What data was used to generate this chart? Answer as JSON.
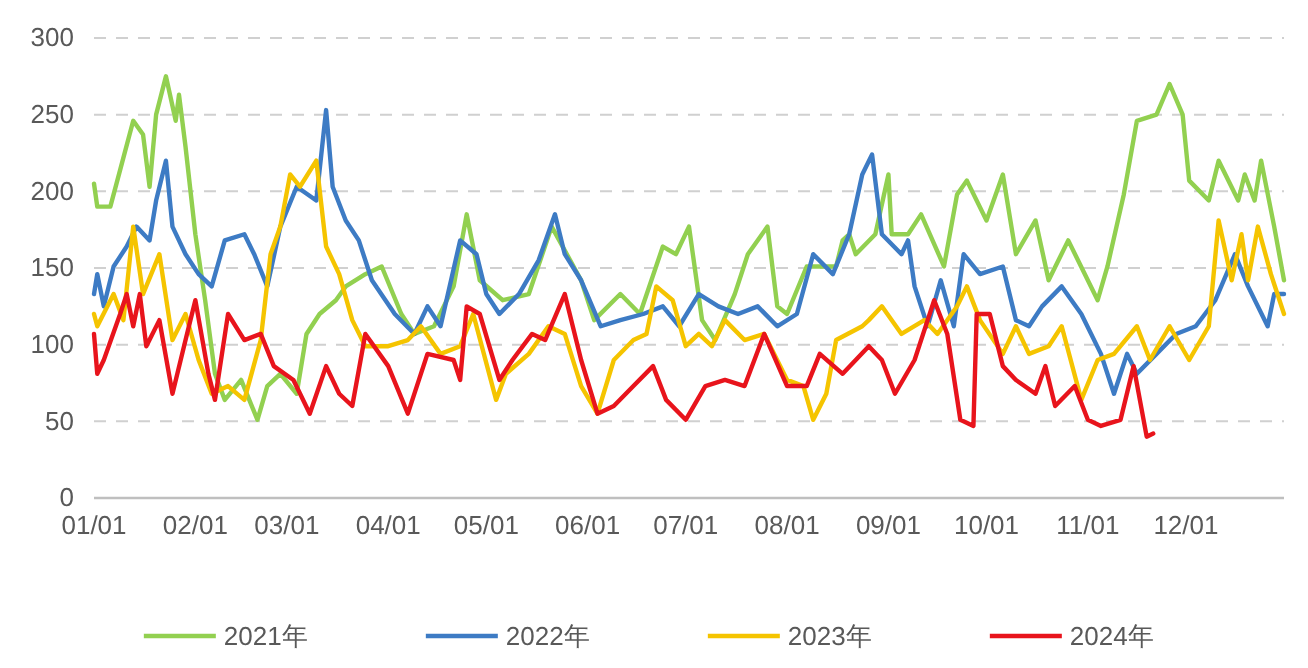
{
  "chart_data": {
    "type": "line",
    "xlim": [
      "--01-01",
      "--12-31"
    ],
    "xticks": [
      {
        "value": "--01-01",
        "label": "01/01"
      },
      {
        "value": "--02-01",
        "label": "02/01"
      },
      {
        "value": "--03-01",
        "label": "03/01"
      },
      {
        "value": "--04-01",
        "label": "04/01"
      },
      {
        "value": "--05-01",
        "label": "05/01"
      },
      {
        "value": "--06-01",
        "label": "06/01"
      },
      {
        "value": "--07-01",
        "label": "07/01"
      },
      {
        "value": "--08-01",
        "label": "08/01"
      },
      {
        "value": "--09-01",
        "label": "09/01"
      },
      {
        "value": "--10-01",
        "label": "10/01"
      },
      {
        "value": "--11-01",
        "label": "11/01"
      },
      {
        "value": "--12-01",
        "label": "12/01"
      }
    ],
    "ylim": [
      0,
      300
    ],
    "yticks": [
      0,
      50,
      100,
      150,
      200,
      250,
      300
    ],
    "grid": "y",
    "legend": "bottom",
    "marker": "none",
    "line_style": "solid",
    "series": [
      {
        "name": "2021年",
        "color": "#92d050",
        "x": [
          "--01-01",
          "--01-02",
          "--01-06",
          "--01-09",
          "--01-13",
          "--01-16",
          "--01-18",
          "--01-20",
          "--01-23",
          "--01-26",
          "--01-27",
          "--01-29",
          "--02-01",
          "--02-04",
          "--02-07",
          "--02-10",
          "--02-15",
          "--02-20",
          "--02-23",
          "--02-27",
          "--03-04",
          "--03-07",
          "--03-11",
          "--03-16",
          "--03-19",
          "--03-25",
          "--03-30",
          "--04-05",
          "--04-09",
          "--04-15",
          "--04-21",
          "--04-25",
          "--04-29",
          "--05-06",
          "--05-14",
          "--05-21",
          "--05-30",
          "--06-03",
          "--06-11",
          "--06-17",
          "--06-24",
          "--06-28",
          "--07-02",
          "--07-06",
          "--07-10",
          "--07-16",
          "--07-20",
          "--07-26",
          "--07-29",
          "--08-01",
          "--08-07",
          "--08-16",
          "--08-18",
          "--08-20",
          "--08-22",
          "--08-28",
          "--09-01",
          "--09-02",
          "--09-07",
          "--09-11",
          "--09-18",
          "--09-22",
          "--09-25",
          "--10-01",
          "--10-06",
          "--10-10",
          "--10-16",
          "--10-20",
          "--10-26",
          "--11-04",
          "--11-07",
          "--11-12",
          "--11-16",
          "--11-22",
          "--11-26",
          "--11-30",
          "--12-02",
          "--12-08",
          "--12-11",
          "--12-17",
          "--12-19",
          "--12-22",
          "--12-24",
          "--12-28",
          "--12-31"
        ],
        "values": [
          205,
          190,
          190,
          214,
          246,
          237,
          203,
          250,
          275,
          246,
          263,
          229,
          172,
          129,
          81,
          64,
          77,
          51,
          73,
          81,
          68,
          107,
          120,
          129,
          138,
          146,
          151,
          120,
          107,
          112,
          138,
          185,
          142,
          129,
          133,
          177,
          142,
          116,
          133,
          120,
          164,
          159,
          177,
          116,
          103,
          133,
          159,
          177,
          125,
          120,
          151,
          151,
          168,
          172,
          159,
          172,
          211,
          172,
          172,
          185,
          151,
          198,
          207,
          181,
          211,
          159,
          181,
          142,
          168,
          129,
          151,
          198,
          246,
          250,
          270,
          250,
          207,
          194,
          220,
          194,
          211,
          194,
          220,
          177,
          142
        ]
      },
      {
        "name": "2022年",
        "color": "#3d7bc4",
        "x": [
          "--01-01",
          "--01-02",
          "--01-04",
          "--01-07",
          "--01-11",
          "--01-14",
          "--01-18",
          "--01-20",
          "--01-23",
          "--01-25",
          "--01-29",
          "--02-02",
          "--02-06",
          "--02-10",
          "--02-16",
          "--02-19",
          "--02-23",
          "--02-27",
          "--03-04",
          "--03-10",
          "--03-13",
          "--03-15",
          "--03-19",
          "--03-23",
          "--03-27",
          "--04-03",
          "--04-09",
          "--04-13",
          "--04-17",
          "--04-23",
          "--04-28",
          "--05-01",
          "--05-05",
          "--05-11",
          "--05-17",
          "--05-22",
          "--05-25",
          "--05-30",
          "--06-05",
          "--06-11",
          "--06-18",
          "--06-24",
          "--06-29",
          "--07-05",
          "--07-11",
          "--07-17",
          "--07-23",
          "--07-29",
          "--08-04",
          "--08-09",
          "--08-15",
          "--08-20",
          "--08-24",
          "--08-27",
          "--08-30",
          "--09-05",
          "--09-07",
          "--09-09",
          "--09-13",
          "--09-17",
          "--09-21",
          "--09-24",
          "--09-29",
          "--10-06",
          "--10-10",
          "--10-14",
          "--10-18",
          "--10-24",
          "--10-30",
          "--11-05",
          "--11-09",
          "--11-13",
          "--11-16",
          "--11-22",
          "--11-28",
          "--12-04",
          "--12-10",
          "--12-16",
          "--12-20",
          "--12-26",
          "--12-28",
          "--12-31"
        ],
        "values": [
          133,
          146,
          125,
          151,
          164,
          177,
          168,
          194,
          220,
          177,
          159,
          146,
          138,
          168,
          172,
          159,
          138,
          177,
          203,
          194,
          253,
          203,
          181,
          168,
          142,
          120,
          107,
          125,
          112,
          168,
          159,
          133,
          120,
          133,
          155,
          185,
          159,
          142,
          112,
          116,
          120,
          125,
          112,
          133,
          125,
          120,
          125,
          112,
          120,
          159,
          146,
          172,
          211,
          224,
          172,
          159,
          168,
          138,
          112,
          142,
          112,
          159,
          146,
          151,
          116,
          112,
          125,
          138,
          120,
          94,
          68,
          94,
          81,
          94,
          107,
          112,
          129,
          159,
          138,
          112,
          133,
          133
        ]
      },
      {
        "name": "2023年",
        "color": "#f5c400",
        "x": [
          "--01-01",
          "--01-02",
          "--01-07",
          "--01-10",
          "--01-13",
          "--01-16",
          "--01-21",
          "--01-25",
          "--01-29",
          "--02-02",
          "--02-06",
          "--02-11",
          "--02-16",
          "--02-21",
          "--02-24",
          "--02-27",
          "--03-02",
          "--03-05",
          "--03-10",
          "--03-13",
          "--03-17",
          "--03-21",
          "--03-25",
          "--04-01",
          "--04-07",
          "--04-11",
          "--04-17",
          "--04-23",
          "--04-27",
          "--05-04",
          "--05-07",
          "--05-14",
          "--05-20",
          "--05-25",
          "--05-30",
          "--06-04",
          "--06-09",
          "--06-15",
          "--06-19",
          "--06-22",
          "--06-27",
          "--07-01",
          "--07-05",
          "--07-09",
          "--07-13",
          "--07-19",
          "--07-25",
          "--08-01",
          "--08-06",
          "--08-09",
          "--08-13",
          "--08-16",
          "--08-24",
          "--08-26",
          "--08-30",
          "--09-05",
          "--09-12",
          "--09-16",
          "--09-22",
          "--09-25",
          "--09-29",
          "--10-06",
          "--10-10",
          "--10-14",
          "--10-20",
          "--10-24",
          "--10-30",
          "--11-04",
          "--11-09",
          "--11-16",
          "--11-20",
          "--11-26",
          "--12-02",
          "--12-08",
          "--12-11",
          "--12-15",
          "--12-18",
          "--12-20",
          "--12-23",
          "--12-27",
          "--12-31"
        ],
        "values": [
          120,
          112,
          133,
          116,
          177,
          133,
          159,
          103,
          120,
          90,
          68,
          73,
          64,
          103,
          159,
          177,
          211,
          203,
          220,
          164,
          146,
          116,
          99,
          99,
          103,
          112,
          94,
          99,
          120,
          64,
          81,
          94,
          112,
          107,
          73,
          55,
          90,
          103,
          107,
          138,
          129,
          99,
          107,
          99,
          116,
          103,
          107,
          77,
          73,
          51,
          68,
          103,
          112,
          116,
          125,
          107,
          116,
          107,
          125,
          138,
          116,
          94,
          112,
          94,
          99,
          112,
          64,
          90,
          94,
          112,
          90,
          112,
          90,
          112,
          181,
          142,
          172,
          142,
          177,
          146,
          120
        ]
      },
      {
        "name": "2024年",
        "color": "#e8141c",
        "x": [
          "--01-01",
          "--01-02",
          "--01-04",
          "--01-09",
          "--01-11",
          "--01-13",
          "--01-15",
          "--01-17",
          "--01-21",
          "--01-25",
          "--01-29",
          "--02-01",
          "--02-05",
          "--02-07",
          "--02-11",
          "--02-16",
          "--02-21",
          "--02-25",
          "--03-03",
          "--03-08",
          "--03-13",
          "--03-17",
          "--03-21",
          "--03-25",
          "--04-01",
          "--04-07",
          "--04-13",
          "--04-21",
          "--04-23",
          "--04-25",
          "--04-29",
          "--05-05",
          "--05-09",
          "--05-15",
          "--05-19",
          "--05-25",
          "--05-30",
          "--06-04",
          "--06-09",
          "--06-15",
          "--06-21",
          "--06-25",
          "--07-01",
          "--07-07",
          "--07-13",
          "--07-19",
          "--07-25",
          "--08-01",
          "--08-07",
          "--08-11",
          "--08-18",
          "--08-26",
          "--08-30",
          "--09-03",
          "--09-09",
          "--09-13",
          "--09-15",
          "--09-19",
          "--09-23",
          "--09-27",
          "--09-28",
          "--10-02",
          "--10-06",
          "--10-10",
          "--10-16",
          "--10-19",
          "--10-22",
          "--10-28",
          "--11-01",
          "--11-05",
          "--11-11",
          "--11-15",
          "--11-19",
          "--11-21"
        ],
        "values": [
          107,
          81,
          90,
          120,
          133,
          112,
          133,
          99,
          116,
          68,
          103,
          129,
          81,
          64,
          120,
          103,
          107,
          86,
          77,
          55,
          86,
          68,
          60,
          107,
          86,
          55,
          94,
          90,
          77,
          125,
          120,
          77,
          90,
          107,
          103,
          133,
          90,
          55,
          60,
          73,
          86,
          64,
          51,
          73,
          77,
          73,
          107,
          73,
          73,
          94,
          81,
          99,
          90,
          68,
          90,
          116,
          129,
          107,
          51,
          47,
          120,
          120,
          86,
          77,
          68,
          86,
          60,
          73,
          51,
          47,
          51,
          86,
          40,
          42
        ]
      }
    ]
  }
}
